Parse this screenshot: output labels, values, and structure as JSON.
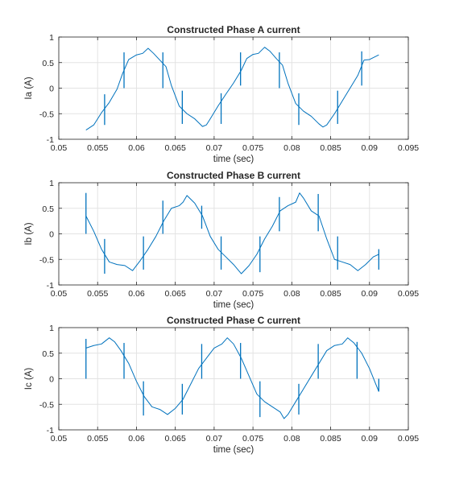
{
  "chart_data": [
    {
      "type": "line",
      "title": "Constructed Phase A current",
      "xlabel": "time (sec)",
      "ylabel": "Ia (A)",
      "xlim": [
        0.05,
        0.095
      ],
      "ylim": [
        -1,
        1
      ],
      "xticks": [
        "0.05",
        "0.055",
        "0.06",
        "0.065",
        "0.07",
        "0.075",
        "0.08",
        "0.085",
        "0.09",
        "0.095"
      ],
      "yticks": [
        "-1",
        "-0.5",
        "0",
        "0.5",
        "1"
      ],
      "grid": true,
      "series": [
        {
          "color": "#0072BD",
          "x": [
            0.0535,
            0.0545,
            0.0555,
            0.0565,
            0.0575,
            0.0582,
            0.059,
            0.06,
            0.0608,
            0.0615,
            0.0622,
            0.063,
            0.0638,
            0.0645,
            0.0655,
            0.0665,
            0.0675,
            0.0685,
            0.069,
            0.0695,
            0.0705,
            0.0715,
            0.0725,
            0.0735,
            0.0742,
            0.075,
            0.0757,
            0.0765,
            0.0772,
            0.078,
            0.0788,
            0.0795,
            0.0805,
            0.0815,
            0.0825,
            0.0835,
            0.084,
            0.0845,
            0.0855,
            0.0865,
            0.0875,
            0.0885,
            0.0893,
            0.09,
            0.0912
          ],
          "y": [
            -0.82,
            -0.72,
            -0.48,
            -0.28,
            -0.02,
            0.28,
            0.56,
            0.65,
            0.68,
            0.78,
            0.68,
            0.55,
            0.42,
            0.05,
            -0.35,
            -0.5,
            -0.6,
            -0.75,
            -0.72,
            -0.6,
            -0.35,
            -0.12,
            0.1,
            0.35,
            0.58,
            0.66,
            0.68,
            0.8,
            0.72,
            0.58,
            0.45,
            0.1,
            -0.3,
            -0.45,
            -0.55,
            -0.7,
            -0.76,
            -0.72,
            -0.5,
            -0.25,
            0.0,
            0.25,
            0.55,
            0.56,
            0.65
          ]
        }
      ],
      "spikes": [
        {
          "x": 0.0559,
          "min": -0.72,
          "max": -0.12
        },
        {
          "x": 0.0584,
          "min": 0.0,
          "max": 0.7
        },
        {
          "x": 0.0634,
          "min": 0.0,
          "max": 0.7
        },
        {
          "x": 0.0659,
          "min": -0.7,
          "max": -0.05
        },
        {
          "x": 0.0709,
          "min": -0.7,
          "max": -0.1
        },
        {
          "x": 0.0734,
          "min": 0.05,
          "max": 0.7
        },
        {
          "x": 0.0784,
          "min": 0.0,
          "max": 0.7
        },
        {
          "x": 0.0809,
          "min": -0.72,
          "max": -0.1
        },
        {
          "x": 0.0859,
          "min": -0.7,
          "max": -0.05
        },
        {
          "x": 0.089,
          "min": 0.05,
          "max": 0.72
        }
      ]
    },
    {
      "type": "line",
      "title": "Constructed Phase B current",
      "xlabel": "time (sec)",
      "ylabel": "Ib (A)",
      "xlim": [
        0.05,
        0.095
      ],
      "ylim": [
        -1,
        1
      ],
      "xticks": [
        "0.05",
        "0.055",
        "0.06",
        "0.065",
        "0.07",
        "0.075",
        "0.08",
        "0.085",
        "0.09",
        "0.095"
      ],
      "yticks": [
        "-1",
        "-0.5",
        "0",
        "0.5",
        "1"
      ],
      "grid": true,
      "series": [
        {
          "color": "#0072BD",
          "x": [
            0.0535,
            0.0545,
            0.0555,
            0.0565,
            0.0575,
            0.0585,
            0.0595,
            0.0605,
            0.0615,
            0.0625,
            0.0635,
            0.0645,
            0.0655,
            0.066,
            0.0665,
            0.0675,
            0.0685,
            0.0695,
            0.0705,
            0.0715,
            0.0725,
            0.0735,
            0.0745,
            0.0755,
            0.0765,
            0.0775,
            0.0785,
            0.0795,
            0.0805,
            0.081,
            0.0815,
            0.0825,
            0.0835,
            0.0845,
            0.0855,
            0.0865,
            0.0875,
            0.0885,
            0.0895,
            0.0905,
            0.0912
          ],
          "y": [
            0.35,
            0.05,
            -0.3,
            -0.55,
            -0.6,
            -0.62,
            -0.72,
            -0.52,
            -0.3,
            -0.05,
            0.25,
            0.5,
            0.55,
            0.62,
            0.75,
            0.6,
            0.35,
            -0.05,
            -0.3,
            -0.45,
            -0.6,
            -0.78,
            -0.62,
            -0.4,
            -0.1,
            0.15,
            0.45,
            0.55,
            0.62,
            0.8,
            0.7,
            0.45,
            0.35,
            -0.1,
            -0.5,
            -0.55,
            -0.6,
            -0.72,
            -0.6,
            -0.45,
            -0.4
          ]
        }
      ],
      "spikes": [
        {
          "x": 0.0535,
          "min": 0.0,
          "max": 0.8
        },
        {
          "x": 0.0559,
          "min": -0.78,
          "max": -0.1
        },
        {
          "x": 0.0609,
          "min": -0.7,
          "max": -0.05
        },
        {
          "x": 0.0634,
          "min": 0.0,
          "max": 0.65
        },
        {
          "x": 0.0684,
          "min": 0.1,
          "max": 0.55
        },
        {
          "x": 0.0709,
          "min": -0.7,
          "max": -0.05
        },
        {
          "x": 0.0759,
          "min": -0.75,
          "max": -0.05
        },
        {
          "x": 0.0784,
          "min": 0.05,
          "max": 0.72
        },
        {
          "x": 0.0834,
          "min": 0.05,
          "max": 0.78
        },
        {
          "x": 0.0859,
          "min": -0.7,
          "max": -0.05
        },
        {
          "x": 0.0912,
          "min": -0.7,
          "max": -0.3
        }
      ]
    },
    {
      "type": "line",
      "title": "Constructed Phase C current",
      "xlabel": "time (sec)",
      "ylabel": "Ic (A)",
      "xlim": [
        0.05,
        0.095
      ],
      "ylim": [
        -1,
        1
      ],
      "xticks": [
        "0.05",
        "0.055",
        "0.06",
        "0.065",
        "0.07",
        "0.075",
        "0.08",
        "0.085",
        "0.09",
        "0.095"
      ],
      "yticks": [
        "-1",
        "-0.5",
        "0",
        "0.5",
        "1"
      ],
      "grid": true,
      "series": [
        {
          "color": "#0072BD",
          "x": [
            0.0535,
            0.0545,
            0.0555,
            0.0565,
            0.0572,
            0.058,
            0.059,
            0.06,
            0.061,
            0.062,
            0.063,
            0.064,
            0.065,
            0.066,
            0.067,
            0.068,
            0.069,
            0.07,
            0.071,
            0.0717,
            0.0725,
            0.0735,
            0.0745,
            0.0755,
            0.0765,
            0.0775,
            0.0785,
            0.079,
            0.0795,
            0.0805,
            0.0815,
            0.0825,
            0.0835,
            0.0845,
            0.0855,
            0.0865,
            0.0872,
            0.088,
            0.089,
            0.09,
            0.0912
          ],
          "y": [
            0.6,
            0.65,
            0.68,
            0.8,
            0.72,
            0.55,
            0.3,
            -0.05,
            -0.35,
            -0.55,
            -0.6,
            -0.7,
            -0.58,
            -0.4,
            -0.1,
            0.2,
            0.4,
            0.6,
            0.68,
            0.8,
            0.68,
            0.4,
            0.05,
            -0.3,
            -0.45,
            -0.55,
            -0.65,
            -0.78,
            -0.7,
            -0.45,
            -0.2,
            0.05,
            0.3,
            0.55,
            0.65,
            0.68,
            0.8,
            0.7,
            0.5,
            0.2,
            -0.25
          ]
        }
      ],
      "spikes": [
        {
          "x": 0.0535,
          "min": 0.0,
          "max": 0.78
        },
        {
          "x": 0.0584,
          "min": 0.0,
          "max": 0.7
        },
        {
          "x": 0.0609,
          "min": -0.72,
          "max": -0.05
        },
        {
          "x": 0.0659,
          "min": -0.7,
          "max": -0.1
        },
        {
          "x": 0.0684,
          "min": 0.0,
          "max": 0.68
        },
        {
          "x": 0.0734,
          "min": 0.0,
          "max": 0.7
        },
        {
          "x": 0.0759,
          "min": -0.75,
          "max": -0.05
        },
        {
          "x": 0.0809,
          "min": -0.7,
          "max": -0.1
        },
        {
          "x": 0.0834,
          "min": 0.0,
          "max": 0.68
        },
        {
          "x": 0.0884,
          "min": 0.0,
          "max": 0.72
        },
        {
          "x": 0.0912,
          "min": -0.25,
          "max": 0.0
        }
      ]
    }
  ]
}
